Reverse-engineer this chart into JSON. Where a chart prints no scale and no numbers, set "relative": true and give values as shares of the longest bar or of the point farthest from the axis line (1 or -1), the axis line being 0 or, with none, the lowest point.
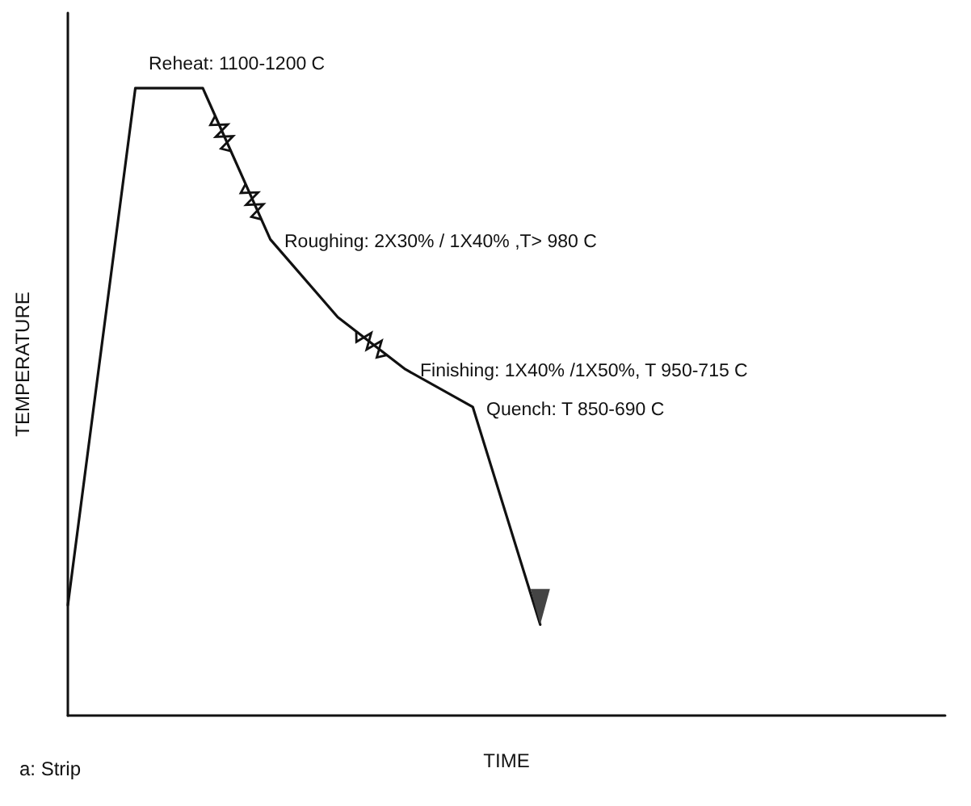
{
  "chart_data": {
    "type": "line",
    "relative": true,
    "xlabel": "TIME",
    "ylabel": "TEMPERATURE",
    "categories": [
      null,
      null,
      null,
      null,
      null,
      null,
      null,
      null,
      null,
      null,
      null,
      null,
      null,
      null
    ],
    "series": [
      {
        "color": "#111111",
        "values": [
          0.176,
          1,
          1,
          0.759,
          0.635,
          0.552,
          0.492,
          0.145,
          null,
          null,
          null,
          null,
          null,
          null
        ]
      }
    ],
    "annotations": [
      "Reheat: 1100-1200 C",
      "Roughing: 2X30% / 1X40% ,T> 980 C",
      "Finishing: 1X40% /1X50%, T 950-715 C",
      "Quench: T 850-690 C",
      "a: Strip"
    ],
    "marker": "none",
    "grid": false
  }
}
